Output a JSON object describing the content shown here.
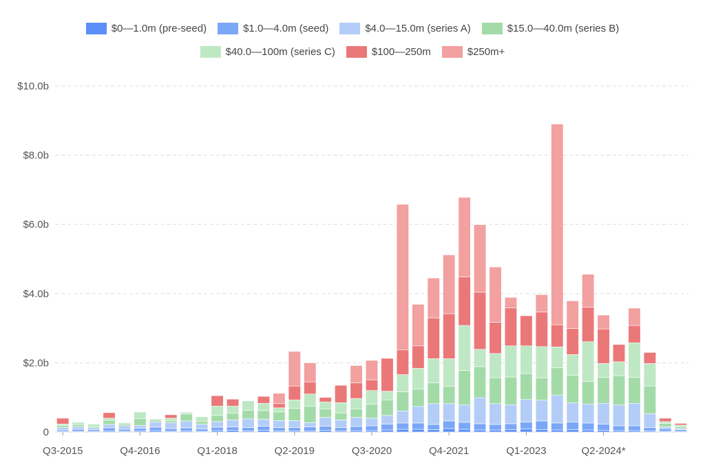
{
  "chart_data": {
    "type": "bar",
    "stacked": true,
    "title": "",
    "xlabel": "",
    "ylabel": "",
    "ylim": [
      0,
      10
    ],
    "yticks": [
      0,
      2,
      4,
      6,
      8,
      10
    ],
    "ytick_labels": [
      "0",
      "$2.0b",
      "$4.0b",
      "$6.0b",
      "$8.0b",
      "$10.0b"
    ],
    "grid": true,
    "legend_position": "top-center",
    "categories": [
      "Q3-2015",
      "Q4-2015",
      "Q1-2016",
      "Q2-2016",
      "Q3-2016",
      "Q4-2016",
      "Q1-2017",
      "Q2-2017",
      "Q3-2017",
      "Q4-2017",
      "Q1-2018",
      "Q2-2018",
      "Q3-2018",
      "Q4-2018",
      "Q1-2019",
      "Q2-2019",
      "Q3-2019",
      "Q4-2019",
      "Q1-2020",
      "Q2-2020",
      "Q3-2020",
      "Q4-2020",
      "Q1-2021",
      "Q2-2021",
      "Q3-2021",
      "Q4-2021",
      "Q1-2022",
      "Q2-2022",
      "Q3-2022",
      "Q4-2022",
      "Q1-2023",
      "Q2-2023",
      "Q3-2023",
      "Q4-2023",
      "Q1-2024",
      "Q2-2024*",
      "Q3-2024",
      "Q4-2024",
      "Q1-2025",
      "Q2-2025",
      "Q3-2025"
    ],
    "visible_xtick_labels": [
      "Q3-2015",
      "Q4-2016",
      "Q1-2018",
      "Q2-2019",
      "Q3-2020",
      "Q4-2021",
      "Q1-2023",
      "Q2-2024*"
    ],
    "series": [
      {
        "name": "$0—1.0m (pre-seed)",
        "color": "#5b8ff9",
        "values": [
          0.02,
          0.02,
          0.02,
          0.03,
          0.02,
          0.03,
          0.04,
          0.02,
          0.03,
          0.02,
          0.04,
          0.05,
          0.03,
          0.05,
          0.03,
          0.03,
          0.03,
          0.05,
          0.03,
          0.04,
          0.04,
          0.06,
          0.08,
          0.08,
          0.07,
          0.1,
          0.08,
          0.06,
          0.06,
          0.07,
          0.09,
          0.07,
          0.06,
          0.07,
          0.06,
          0.05,
          0.04,
          0.04,
          0.03,
          0.02,
          0.02
        ]
      },
      {
        "name": "$1.0—4.0m (seed)",
        "color": "#7ba7f7",
        "values": [
          0.04,
          0.06,
          0.05,
          0.09,
          0.06,
          0.08,
          0.1,
          0.08,
          0.09,
          0.07,
          0.1,
          0.1,
          0.1,
          0.12,
          0.1,
          0.1,
          0.12,
          0.12,
          0.1,
          0.12,
          0.14,
          0.17,
          0.18,
          0.18,
          0.15,
          0.22,
          0.2,
          0.18,
          0.16,
          0.17,
          0.2,
          0.25,
          0.2,
          0.22,
          0.2,
          0.18,
          0.14,
          0.14,
          0.1,
          0.08,
          0.05
        ]
      },
      {
        "name": "$4.0—15.0m (series A)",
        "color": "#b4cdf8",
        "values": [
          0.07,
          0.08,
          0.06,
          0.1,
          0.1,
          0.08,
          0.15,
          0.17,
          0.2,
          0.14,
          0.16,
          0.2,
          0.25,
          0.2,
          0.2,
          0.2,
          0.12,
          0.25,
          0.22,
          0.26,
          0.22,
          0.25,
          0.35,
          0.48,
          0.6,
          0.5,
          0.5,
          0.75,
          0.6,
          0.55,
          0.65,
          0.6,
          0.8,
          0.55,
          0.55,
          0.6,
          0.6,
          0.65,
          0.4,
          0.05,
          0.03
        ]
      },
      {
        "name": "$15.0—40.0m (series B)",
        "color": "#a3dba8",
        "values": [
          0.06,
          0.06,
          0.04,
          0.12,
          0.05,
          0.2,
          0.05,
          0.06,
          0.2,
          0.08,
          0.18,
          0.2,
          0.25,
          0.25,
          0.25,
          0.35,
          0.48,
          0.25,
          0.2,
          0.25,
          0.4,
          0.45,
          0.55,
          0.5,
          0.6,
          0.5,
          1.0,
          0.9,
          0.75,
          0.8,
          0.75,
          0.65,
          0.8,
          0.8,
          0.65,
          0.75,
          0.85,
          0.75,
          0.8,
          0.1,
          0.05
        ]
      },
      {
        "name": "$40.0—100m (series C)",
        "color": "#bee8c3",
        "values": [
          0.04,
          0.06,
          0.06,
          0.06,
          0.04,
          0.19,
          0.04,
          0.07,
          0.05,
          0.13,
          0.27,
          0.2,
          0.27,
          0.21,
          0.12,
          0.25,
          0.35,
          0.2,
          0.3,
          0.3,
          0.4,
          0.25,
          0.5,
          0.6,
          0.7,
          0.8,
          1.3,
          0.5,
          0.7,
          0.9,
          0.8,
          0.9,
          0.6,
          0.6,
          1.15,
          0.4,
          0.4,
          1.0,
          0.65,
          0.05,
          0.05
        ]
      },
      {
        "name": "$100—250m",
        "color": "#eb7878",
        "values": [
          0.17,
          0,
          0,
          0.16,
          0,
          0,
          0,
          0.1,
          0,
          0,
          0.3,
          0.2,
          0,
          0.2,
          0.12,
          0.4,
          0.35,
          0.13,
          0.5,
          0.45,
          0.31,
          0.95,
          0.72,
          0.65,
          1.18,
          1.3,
          1.4,
          1.65,
          0.9,
          1.1,
          0.87,
          1.0,
          0.64,
          0.75,
          1.0,
          1.0,
          0.5,
          0.5,
          0.32,
          0.1,
          0.05
        ]
      },
      {
        "name": "$250m+",
        "color": "#f2a0a0",
        "values": [
          0,
          0,
          0,
          0,
          0,
          0,
          0,
          0,
          0,
          0,
          0,
          0,
          0,
          0,
          0.3,
          1.0,
          0.55,
          0,
          0,
          0.5,
          0.56,
          0,
          4.2,
          1.2,
          1.15,
          1.7,
          2.3,
          1.95,
          1.6,
          0.3,
          0,
          0.5,
          5.8,
          0.8,
          0.95,
          0.4,
          0,
          0.5,
          0,
          0,
          0
        ]
      }
    ]
  }
}
